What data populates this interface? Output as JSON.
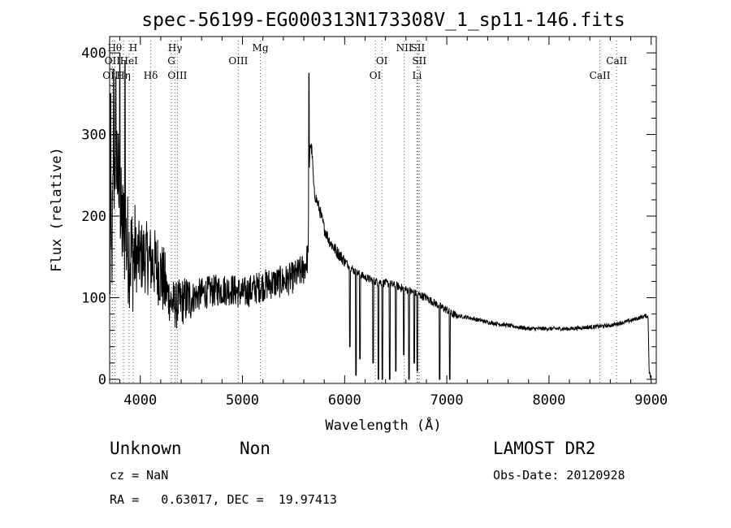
{
  "chart_data": {
    "type": "line",
    "title": "spec-56199-EG000313N173308V_1_sp11-146.fits",
    "xlabel": "Wavelength (Å)",
    "ylabel": "Flux (relative)",
    "xlim": [
      3700,
      9050
    ],
    "ylim": [
      -5,
      420
    ],
    "xticks": [
      4000,
      5000,
      6000,
      7000,
      8000,
      9000
    ],
    "yticks": [
      0,
      100,
      200,
      300,
      400
    ],
    "series": [
      {
        "name": "spectrum",
        "anchors": [
          [
            3700,
            60
          ],
          [
            3720,
            150
          ],
          [
            3740,
            240
          ],
          [
            3760,
            300
          ],
          [
            3780,
            250
          ],
          [
            3800,
            200
          ],
          [
            3840,
            180
          ],
          [
            3880,
            160
          ],
          [
            3920,
            150
          ],
          [
            3960,
            150
          ],
          [
            4000,
            150
          ],
          [
            4050,
            150
          ],
          [
            4100,
            145
          ],
          [
            4150,
            140
          ],
          [
            4200,
            130
          ],
          [
            4250,
            110
          ],
          [
            4300,
            95
          ],
          [
            4350,
            90
          ],
          [
            4400,
            95
          ],
          [
            4500,
            100
          ],
          [
            4600,
            105
          ],
          [
            4700,
            108
          ],
          [
            4800,
            110
          ],
          [
            4900,
            110
          ],
          [
            5000,
            105
          ],
          [
            5100,
            110
          ],
          [
            5200,
            115
          ],
          [
            5300,
            118
          ],
          [
            5400,
            120
          ],
          [
            5500,
            125
          ],
          [
            5600,
            135
          ],
          [
            5640,
            150
          ],
          [
            5660,
            290
          ],
          [
            5680,
            280
          ],
          [
            5700,
            230
          ],
          [
            5750,
            210
          ],
          [
            5800,
            185
          ],
          [
            5850,
            170
          ],
          [
            5900,
            160
          ],
          [
            6000,
            145
          ],
          [
            6100,
            132
          ],
          [
            6200,
            125
          ],
          [
            6300,
            120
          ],
          [
            6400,
            118
          ],
          [
            6500,
            115
          ],
          [
            6600,
            110
          ],
          [
            6700,
            105
          ],
          [
            6800,
            100
          ],
          [
            6900,
            92
          ],
          [
            7000,
            85
          ],
          [
            7050,
            80
          ],
          [
            7100,
            78
          ],
          [
            7200,
            76
          ],
          [
            7400,
            70
          ],
          [
            7600,
            66
          ],
          [
            7800,
            62
          ],
          [
            8000,
            62
          ],
          [
            8200,
            62
          ],
          [
            8400,
            64
          ],
          [
            8600,
            66
          ],
          [
            8800,
            72
          ],
          [
            8950,
            78
          ],
          [
            8970,
            76
          ],
          [
            8980,
            10
          ],
          [
            9000,
            0
          ]
        ],
        "absorption": [
          [
            6050,
            40
          ],
          [
            6110,
            5
          ],
          [
            6150,
            25
          ],
          [
            6280,
            20
          ],
          [
            6330,
            0
          ],
          [
            6370,
            0
          ],
          [
            6440,
            0
          ],
          [
            6500,
            10
          ],
          [
            6580,
            30
          ],
          [
            6630,
            0
          ],
          [
            6680,
            20
          ],
          [
            6710,
            10
          ],
          [
            6930,
            0
          ],
          [
            7030,
            0
          ]
        ],
        "spikes": [
          [
            3710,
            350
          ],
          [
            3740,
            380
          ],
          [
            3760,
            370
          ],
          [
            3800,
            400
          ],
          [
            3850,
            390
          ],
          [
            5650,
            375
          ]
        ]
      }
    ],
    "lines": [
      {
        "label": "Hθ",
        "x": 3750,
        "row": 0
      },
      {
        "label": "H",
        "x": 3930,
        "row": 0
      },
      {
        "label": "Hγ",
        "x": 4340,
        "row": 0
      },
      {
        "label": "Mg",
        "x": 5175,
        "row": 0
      },
      {
        "label": "NII",
        "x": 6583,
        "row": 0
      },
      {
        "label": "SII",
        "x": 6716,
        "row": 0
      },
      {
        "label": "OII",
        "x": 3727,
        "row": 1
      },
      {
        "label": "HeI",
        "x": 3889,
        "row": 1
      },
      {
        "label": "G",
        "x": 4305,
        "row": 1
      },
      {
        "label": "OIII",
        "x": 4959,
        "row": 1
      },
      {
        "label": "OI",
        "x": 6364,
        "row": 1
      },
      {
        "label": "SII",
        "x": 6731,
        "row": 1
      },
      {
        "label": "CaII",
        "x": 8662,
        "row": 1
      },
      {
        "label": "OIII",
        "x": 3726,
        "row": 2
      },
      {
        "label": "Hη",
        "x": 3835,
        "row": 2
      },
      {
        "label": "Hδ",
        "x": 4102,
        "row": 2
      },
      {
        "label": "OIII",
        "x": 4363,
        "row": 2
      },
      {
        "label": "OI",
        "x": 6300,
        "row": 2
      },
      {
        "label": "Li",
        "x": 6708,
        "row": 2
      },
      {
        "label": "CaII",
        "x": 8498,
        "row": 2
      }
    ],
    "grid": false
  },
  "info": {
    "class_label": "Unknown",
    "subclass_label": "Non",
    "survey": "LAMOST DR2",
    "cz": "cz = NaN",
    "obs_date": "Obs-Date: 20120928",
    "radec": "RA =   0.63017, DEC =  19.97413"
  }
}
